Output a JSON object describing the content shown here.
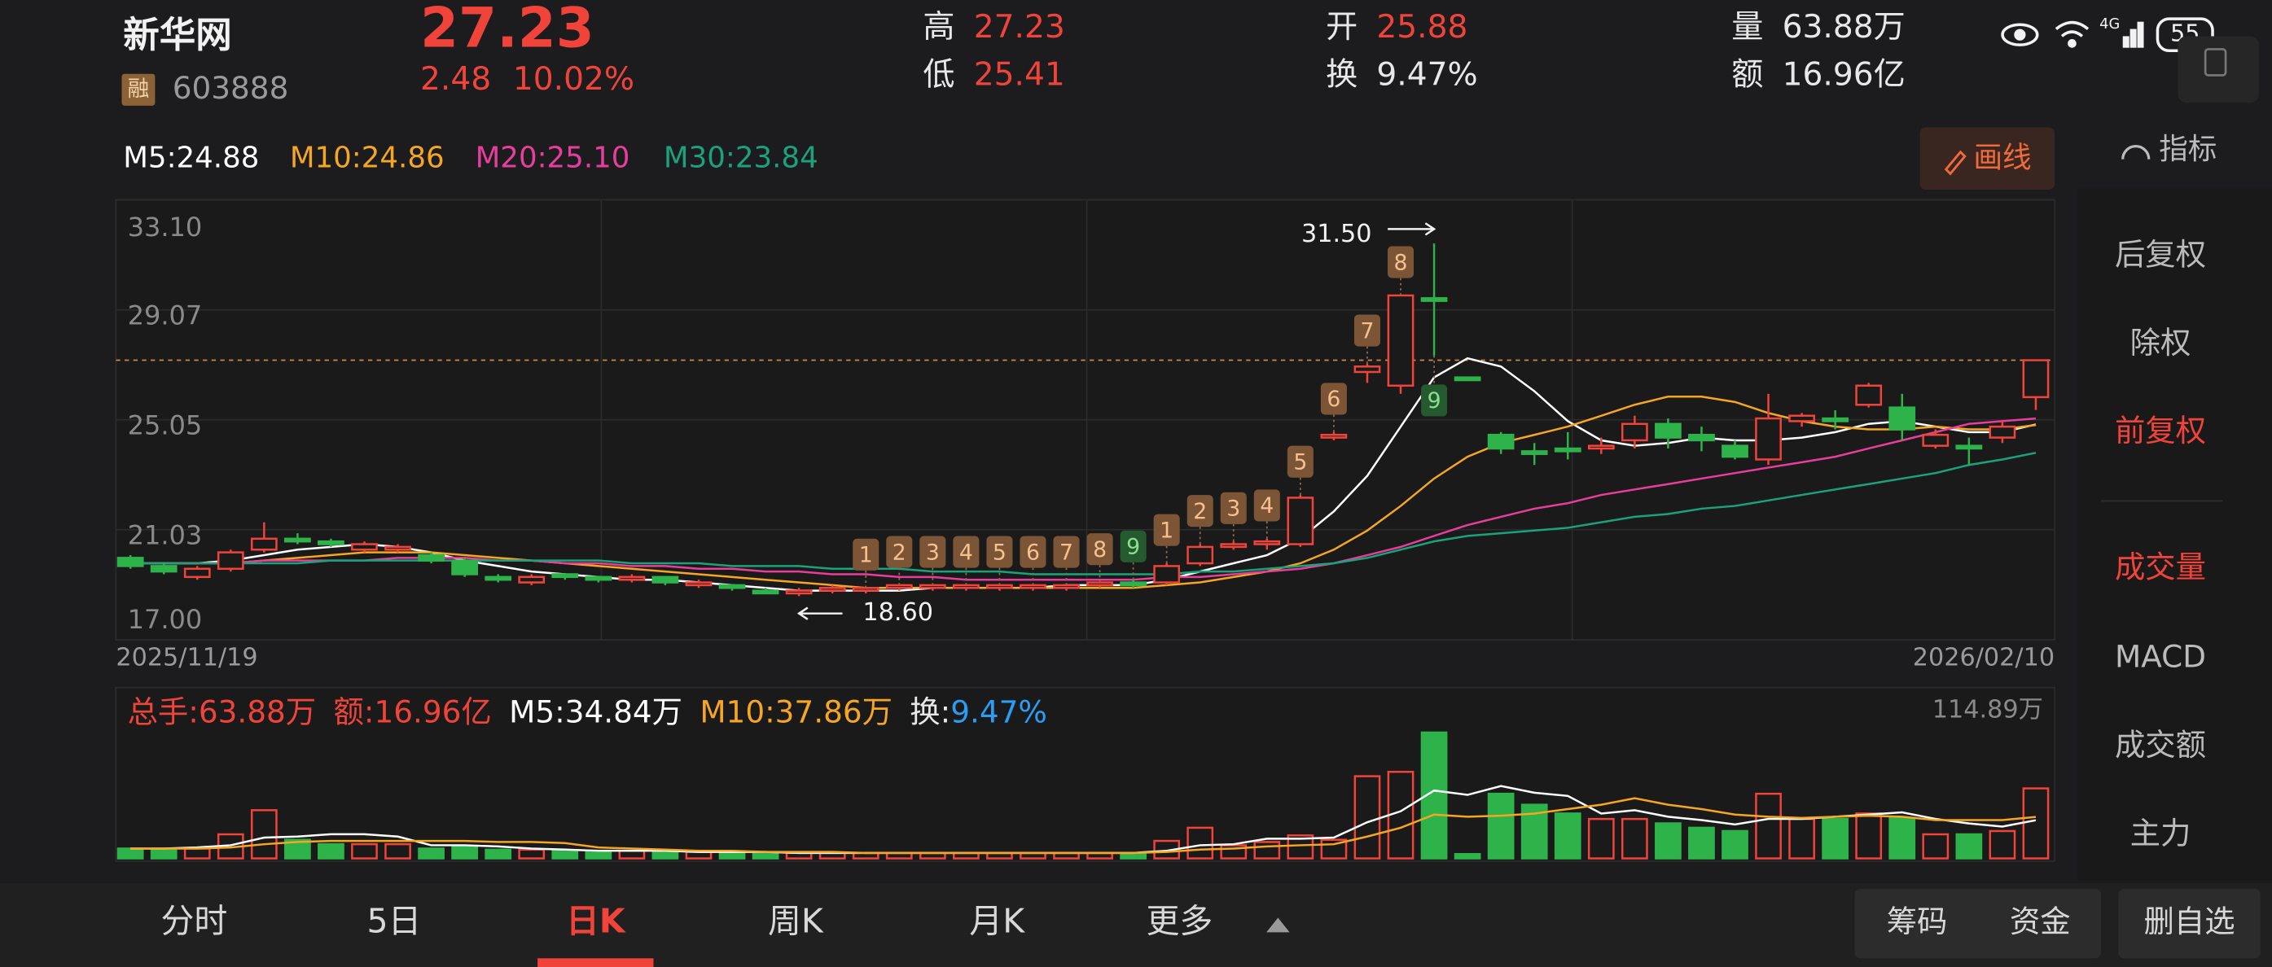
{
  "status": {
    "network": "4G",
    "battery": "55"
  },
  "header": {
    "name": "新华网",
    "price": "27.23",
    "change": "2.48",
    "change_pct": "10.02%",
    "badge": "融",
    "code": "603888",
    "stats": [
      {
        "label": "高",
        "value": "27.23",
        "color": "#f0443a"
      },
      {
        "label": "低",
        "value": "25.41",
        "color": "#f0443a"
      },
      {
        "label": "开",
        "value": "25.88",
        "color": "#f0443a"
      },
      {
        "label": "换",
        "value": "9.47%",
        "color": "#e8e8e8"
      },
      {
        "label": "量",
        "value": "63.88万",
        "color": "#e8e8e8"
      },
      {
        "label": "额",
        "value": "16.96亿",
        "color": "#e8e8e8"
      }
    ]
  },
  "toolbar": {
    "draw": "画线",
    "indicator": "指标"
  },
  "side_menu": [
    {
      "label": "后复权",
      "active": false
    },
    {
      "label": "除权",
      "active": false
    },
    {
      "label": "前复权",
      "active": true
    },
    {
      "label": "成交量",
      "active": true
    },
    {
      "label": "MACD",
      "active": false
    },
    {
      "label": "成交额",
      "active": false
    },
    {
      "label": "主力",
      "active": false
    }
  ],
  "chart_data": [
    {
      "type": "candlestick",
      "up_color": "#f0443a",
      "down_color": "#2db34a",
      "start_date": "2025/11/19",
      "end_date": "2026/02/10",
      "ylim": [
        17.0,
        33.1
      ],
      "yticks": [
        {
          "value": 33.1,
          "label": "33.10"
        },
        29.07,
        25.05,
        21.03,
        {
          "value": 17.0,
          "label": "17.00"
        }
      ],
      "candles": {
        "open": [
          20.0,
          19.7,
          19.3,
          19.6,
          20.3,
          20.7,
          20.6,
          20.3,
          20.3,
          20.1,
          19.9,
          19.3,
          19.1,
          19.4,
          19.3,
          19.2,
          19.3,
          19.0,
          19.0,
          18.8,
          18.7,
          18.8,
          18.8,
          18.9,
          18.9,
          18.9,
          18.9,
          18.9,
          18.9,
          19.0,
          19.1,
          19.1,
          19.8,
          20.4,
          20.5,
          20.5,
          24.4,
          26.8,
          26.3,
          29.5,
          26.6,
          24.5,
          23.9,
          24.0,
          24.0,
          24.3,
          24.9,
          24.5,
          24.1,
          23.6,
          25.0,
          25.1,
          25.6,
          25.5,
          24.1,
          24.1,
          24.4,
          25.88
        ],
        "high": [
          20.1,
          19.8,
          19.7,
          20.3,
          21.3,
          20.9,
          20.7,
          20.6,
          20.5,
          20.2,
          20.0,
          19.4,
          19.4,
          19.4,
          19.3,
          19.4,
          19.3,
          19.2,
          19.0,
          18.9,
          18.9,
          19.0,
          18.9,
          19.0,
          19.0,
          19.0,
          19.0,
          19.0,
          19.0,
          19.1,
          19.2,
          19.8,
          20.5,
          20.6,
          20.7,
          22.3,
          24.6,
          27.1,
          29.6,
          31.5,
          26.6,
          24.6,
          24.2,
          24.6,
          24.4,
          25.2,
          25.1,
          24.8,
          24.3,
          26.0,
          25.3,
          25.4,
          26.4,
          26.0,
          24.7,
          24.4,
          25.0,
          27.23
        ],
        "low": [
          19.6,
          19.4,
          19.2,
          19.5,
          20.2,
          20.5,
          20.4,
          20.2,
          20.2,
          19.8,
          19.3,
          19.1,
          19.0,
          19.2,
          19.1,
          19.1,
          19.0,
          18.9,
          18.8,
          18.7,
          18.6,
          18.7,
          18.7,
          18.8,
          18.8,
          18.8,
          18.8,
          18.8,
          18.8,
          18.9,
          18.9,
          19.0,
          19.7,
          20.3,
          20.3,
          20.4,
          24.3,
          26.4,
          26.0,
          27.4,
          26.5,
          23.8,
          23.4,
          23.6,
          23.8,
          24.0,
          24.0,
          23.9,
          23.6,
          23.4,
          24.8,
          24.7,
          25.5,
          24.3,
          24.0,
          23.4,
          24.2,
          25.41
        ],
        "close": [
          19.7,
          19.5,
          19.6,
          20.2,
          20.7,
          20.6,
          20.5,
          20.5,
          20.4,
          19.9,
          19.4,
          19.2,
          19.3,
          19.3,
          19.2,
          19.3,
          19.1,
          19.1,
          18.9,
          18.7,
          18.8,
          18.9,
          18.9,
          19.0,
          19.0,
          19.0,
          19.0,
          19.0,
          19.0,
          19.1,
          19.0,
          19.7,
          20.4,
          20.5,
          20.6,
          22.2,
          24.5,
          27.0,
          29.6,
          29.4,
          26.5,
          24.0,
          23.8,
          23.9,
          24.1,
          24.9,
          24.4,
          24.3,
          23.7,
          25.1,
          25.2,
          25.0,
          26.3,
          24.7,
          24.5,
          24.0,
          24.8,
          27.23
        ]
      },
      "td_labels": [
        null,
        null,
        null,
        null,
        null,
        null,
        null,
        null,
        null,
        null,
        null,
        null,
        null,
        null,
        null,
        null,
        null,
        null,
        null,
        null,
        null,
        null,
        "1",
        "2",
        "3",
        "4",
        "5",
        "6",
        "7",
        "8",
        "9",
        "1",
        "2",
        "3",
        "4",
        "5",
        "6",
        "7",
        "8",
        "9",
        null,
        null,
        null,
        null,
        null,
        null,
        null,
        null,
        null,
        null,
        null,
        null,
        null,
        null,
        null,
        null,
        null,
        null
      ],
      "annotations": [
        {
          "value": 31.5,
          "label": "31.50",
          "direction": "right"
        },
        {
          "value": 18.6,
          "label": "18.60",
          "direction": "left"
        }
      ],
      "series": [
        {
          "name": "M5:24.88",
          "color": "#ffffff",
          "values": [
            19.8,
            19.8,
            19.8,
            19.9,
            20.1,
            20.3,
            20.4,
            20.5,
            20.4,
            20.2,
            19.9,
            19.7,
            19.5,
            19.4,
            19.3,
            19.2,
            19.2,
            19.1,
            19.0,
            18.9,
            18.8,
            18.8,
            18.8,
            18.8,
            18.9,
            18.9,
            18.9,
            18.9,
            19.0,
            19.0,
            19.0,
            19.2,
            19.5,
            19.8,
            20.1,
            20.7,
            21.7,
            23.0,
            24.8,
            26.6,
            27.3,
            27.0,
            26.1,
            25.0,
            24.3,
            24.1,
            24.2,
            24.4,
            24.3,
            24.3,
            24.4,
            24.6,
            24.9,
            25.0,
            24.8,
            24.6,
            24.6,
            24.88
          ]
        },
        {
          "name": "M10:24.86",
          "color": "#f5a623",
          "values": [
            19.8,
            19.8,
            19.8,
            19.8,
            19.9,
            20.0,
            20.1,
            20.2,
            20.2,
            20.2,
            20.1,
            20.0,
            19.9,
            19.8,
            19.7,
            19.6,
            19.5,
            19.4,
            19.3,
            19.2,
            19.1,
            19.0,
            18.9,
            18.9,
            18.9,
            18.9,
            18.9,
            18.9,
            18.9,
            18.9,
            18.9,
            19.0,
            19.1,
            19.3,
            19.5,
            19.8,
            20.3,
            21.0,
            21.9,
            22.9,
            23.7,
            24.2,
            24.5,
            24.8,
            25.2,
            25.6,
            25.9,
            25.9,
            25.7,
            25.3,
            25.0,
            24.8,
            24.7,
            24.7,
            24.8,
            24.7,
            24.7,
            24.86
          ]
        },
        {
          "name": "M20:25.10",
          "color": "#e83e9b",
          "values": [
            19.8,
            19.8,
            19.8,
            19.8,
            19.9,
            19.9,
            19.9,
            19.9,
            20.0,
            20.0,
            20.0,
            19.9,
            19.9,
            19.8,
            19.8,
            19.7,
            19.7,
            19.6,
            19.6,
            19.5,
            19.5,
            19.4,
            19.4,
            19.3,
            19.3,
            19.2,
            19.2,
            19.2,
            19.2,
            19.2,
            19.2,
            19.3,
            19.3,
            19.4,
            19.5,
            19.6,
            19.8,
            20.1,
            20.4,
            20.8,
            21.2,
            21.5,
            21.8,
            22.0,
            22.3,
            22.5,
            22.7,
            22.9,
            23.1,
            23.3,
            23.5,
            23.7,
            24.0,
            24.3,
            24.6,
            24.9,
            25.0,
            25.1
          ]
        },
        {
          "name": "M30:23.84",
          "color": "#1aa37a",
          "values": [
            19.8,
            19.8,
            19.8,
            19.8,
            19.8,
            19.8,
            19.9,
            19.9,
            19.9,
            19.9,
            19.9,
            19.9,
            19.9,
            19.9,
            19.9,
            19.8,
            19.8,
            19.8,
            19.7,
            19.7,
            19.7,
            19.6,
            19.6,
            19.6,
            19.5,
            19.5,
            19.5,
            19.4,
            19.4,
            19.4,
            19.4,
            19.4,
            19.5,
            19.5,
            19.6,
            19.7,
            19.8,
            20.0,
            20.3,
            20.6,
            20.8,
            20.9,
            21.0,
            21.1,
            21.3,
            21.5,
            21.6,
            21.8,
            21.9,
            22.1,
            22.3,
            22.5,
            22.7,
            22.9,
            23.1,
            23.4,
            23.6,
            23.84
          ]
        }
      ]
    },
    {
      "type": "bar",
      "legend": [
        {
          "text": "总手:63.88万",
          "color": "#f0443a"
        },
        {
          "text": "额:16.96亿",
          "color": "#f0443a"
        }
      ],
      "turnover": {
        "label": "换:",
        "value": "9.47%"
      },
      "ylim": [
        0,
        114.89
      ],
      "yticks": [
        {
          "value": 114.89,
          "label": "114.89万"
        }
      ],
      "values": [
        9,
        9,
        9,
        22,
        44,
        17,
        13,
        13,
        13,
        9,
        11,
        8,
        8,
        7,
        7,
        7,
        7,
        6,
        6,
        5,
        5,
        5,
        5,
        5,
        5,
        5,
        5,
        5,
        5,
        5,
        5,
        16,
        28,
        12,
        15,
        21,
        17,
        75,
        79,
        114.89,
        4,
        59,
        49,
        41,
        36,
        36,
        32,
        28,
        25,
        59,
        36,
        36,
        41,
        37,
        22,
        22,
        25,
        63.88
      ],
      "series": [
        {
          "name": "M5:34.84万",
          "color": "#ffffff",
          "values": [
            9,
            9,
            10,
            12,
            19,
            20,
            22,
            22,
            20,
            12,
            12,
            11,
            9,
            8,
            7,
            7,
            7,
            6,
            6,
            6,
            5,
            5,
            5,
            5,
            5,
            5,
            5,
            5,
            5,
            5,
            5,
            7,
            12,
            13,
            18,
            18,
            19,
            33,
            43,
            62,
            58,
            66,
            60,
            57,
            41,
            44,
            38,
            35,
            31,
            36,
            36,
            38,
            40,
            42,
            36,
            32,
            29,
            34.84
          ]
        },
        {
          "name": "M10:37.86万",
          "color": "#f5a623",
          "values": [
            9,
            9,
            9,
            10,
            13,
            15,
            16,
            16,
            16,
            16,
            16,
            15,
            15,
            14,
            10,
            9,
            8,
            7,
            7,
            6,
            6,
            6,
            5,
            5,
            5,
            5,
            5,
            5,
            5,
            5,
            5,
            6,
            8,
            9,
            11,
            12,
            13,
            20,
            28,
            40,
            38,
            39,
            41,
            45,
            49,
            55,
            49,
            45,
            40,
            38,
            37,
            38,
            39,
            38,
            35,
            35,
            35,
            37.86
          ]
        }
      ]
    }
  ],
  "tabs": [
    {
      "label": "分时",
      "active": false
    },
    {
      "label": "5日",
      "active": false
    },
    {
      "label": "日K",
      "active": true
    },
    {
      "label": "周K",
      "active": false
    },
    {
      "label": "月K",
      "active": false
    },
    {
      "label": "更多",
      "active": false
    }
  ],
  "buttons": [
    "筹码",
    "资金",
    "删自选"
  ]
}
